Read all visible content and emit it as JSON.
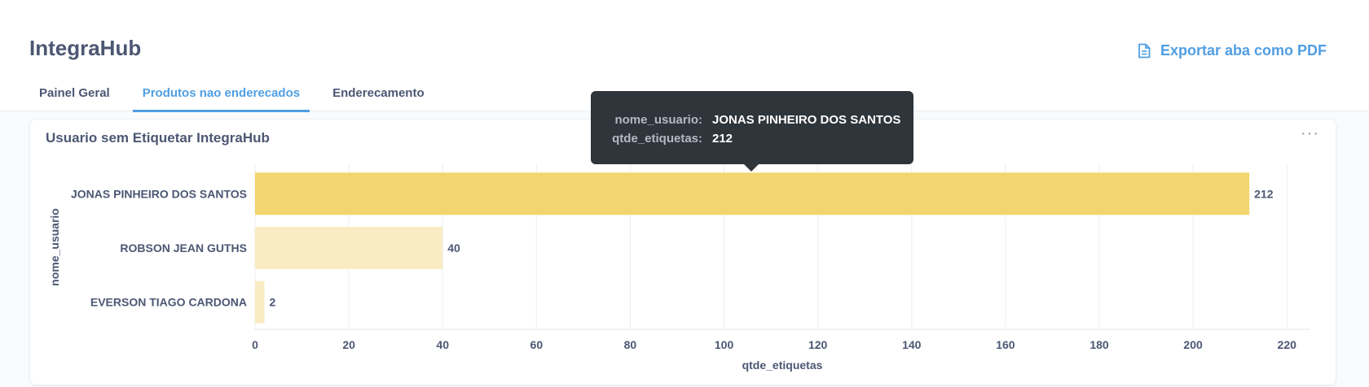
{
  "app": {
    "title": "IntegraHub",
    "export_label": "Exportar aba como PDF",
    "export_icon": "document-icon"
  },
  "tabs": [
    {
      "label": "Painel Geral",
      "active": false
    },
    {
      "label": "Produtos nao enderecados",
      "active": true
    },
    {
      "label": "Enderecamento",
      "active": false
    }
  ],
  "card": {
    "title": "Usuario sem Etiquetar IntegraHub",
    "menu_label": "···"
  },
  "tooltip": {
    "rows": [
      {
        "key": "nome_usuario:",
        "value": "JONAS PINHEIRO DOS SANTOS"
      },
      {
        "key": "qtde_etiquetas:",
        "value": "212"
      }
    ]
  },
  "chart_data": {
    "type": "bar",
    "orientation": "horizontal",
    "categories": [
      "JONAS PINHEIRO DOS SANTOS",
      "ROBSON JEAN GUTHS",
      "EVERSON TIAGO CARDONA"
    ],
    "values": [
      212,
      40,
      2
    ],
    "highlighted_index": 0,
    "xlabel": "qtde_etiquetas",
    "ylabel": "nome_usuario",
    "xlim": [
      0,
      225
    ],
    "xticks": [
      0,
      20,
      40,
      60,
      80,
      100,
      120,
      140,
      160,
      180,
      200,
      220
    ],
    "grid": true,
    "data_labels": true,
    "colors": {
      "highlight": "#f2d56f",
      "dimmed": "#f9ecc4",
      "grid": "#eceef1"
    }
  }
}
